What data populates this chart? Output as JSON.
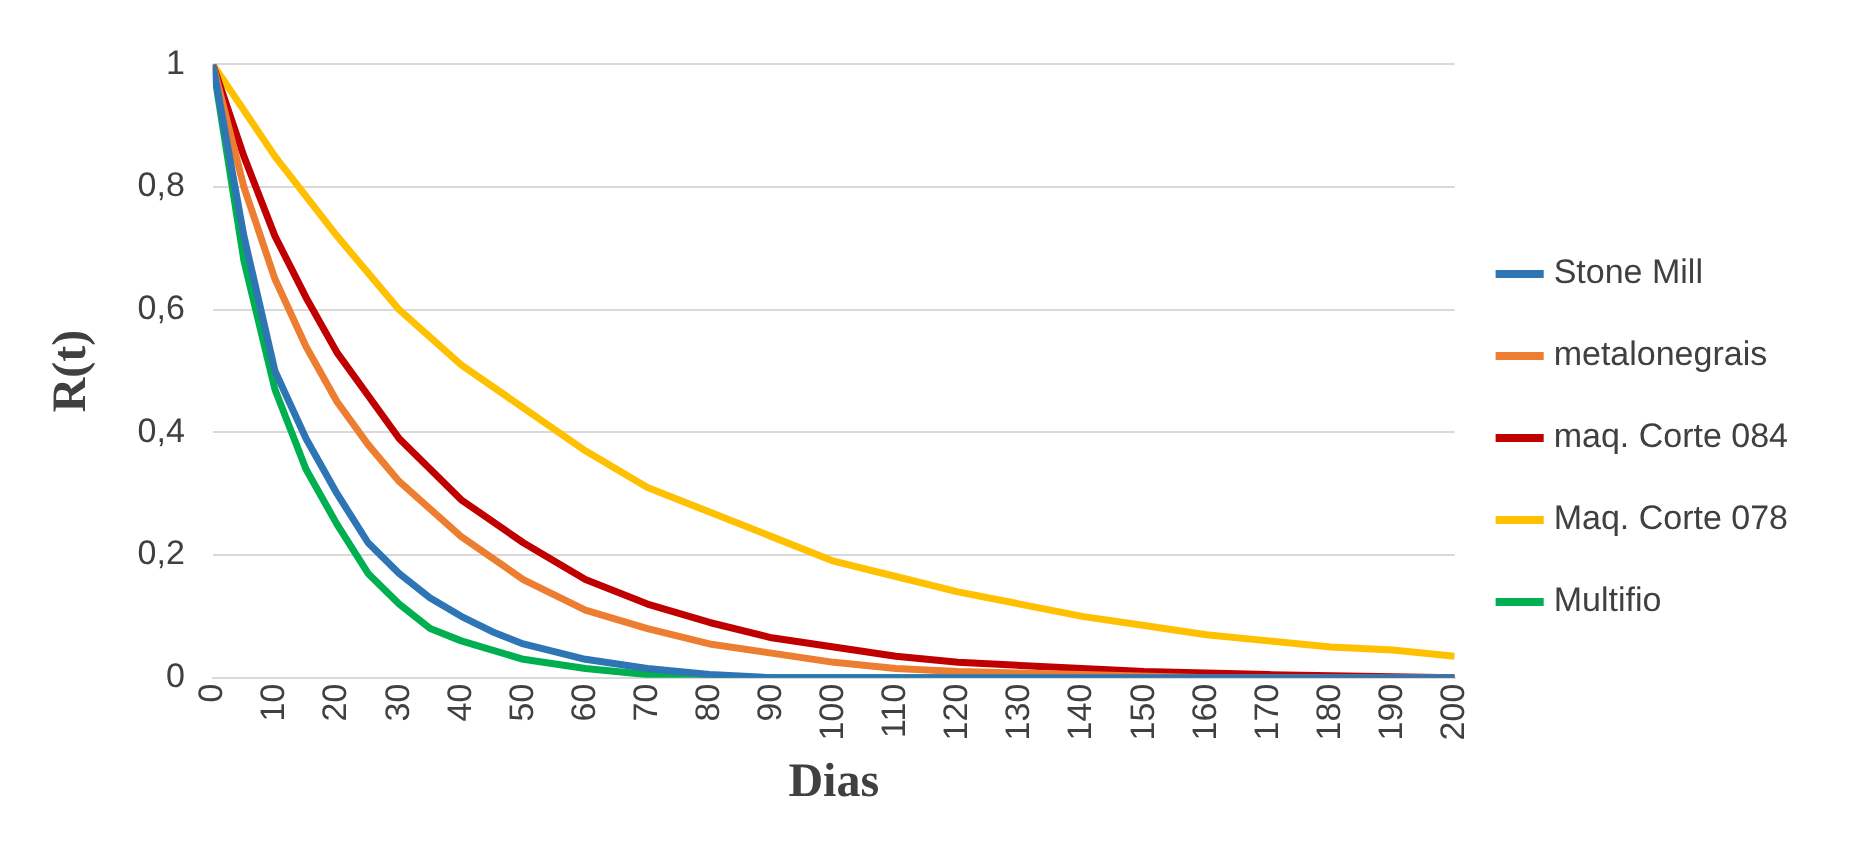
{
  "chart_data": {
    "type": "line",
    "xlabel": "Dias",
    "ylabel": "R(t)",
    "xlim": [
      0,
      200
    ],
    "xticks": [
      0,
      10,
      20,
      30,
      40,
      50,
      60,
      70,
      80,
      90,
      100,
      110,
      120,
      130,
      140,
      150,
      160,
      170,
      180,
      190,
      200
    ],
    "ylim": [
      0,
      1
    ],
    "yticks": [
      0,
      {
        "value": 0.2,
        "label": "0,2"
      },
      {
        "value": 0.4,
        "label": "0,4"
      },
      {
        "value": 0.6,
        "label": "0,6"
      },
      {
        "value": 0.8,
        "label": "0,8"
      },
      1
    ],
    "grid": "y",
    "legend": "right",
    "marker": "none",
    "line_style": "solid",
    "series": [
      {
        "name": "Stone Mill",
        "color": "#2e75b6",
        "x": [
          0,
          5,
          10,
          15,
          20,
          25,
          30,
          35,
          40,
          45,
          50,
          60,
          70,
          80,
          90,
          200
        ],
        "values": [
          1,
          0.72,
          0.5,
          0.39,
          0.3,
          0.22,
          0.17,
          0.13,
          0.1,
          0.075,
          0.055,
          0.03,
          0.015,
          0.005,
          0,
          0
        ]
      },
      {
        "name": "metalonegrais",
        "color": "#ed7d31",
        "x": [
          0,
          5,
          10,
          15,
          20,
          25,
          30,
          40,
          50,
          60,
          70,
          80,
          90,
          100,
          110,
          120,
          140,
          160,
          200
        ],
        "values": [
          1,
          0.8,
          0.65,
          0.54,
          0.45,
          0.38,
          0.32,
          0.23,
          0.16,
          0.11,
          0.08,
          0.055,
          0.04,
          0.025,
          0.015,
          0.01,
          0.005,
          0,
          0
        ]
      },
      {
        "name": "maq. Corte 084",
        "color": "#c00000",
        "x": [
          0,
          5,
          10,
          15,
          20,
          25,
          30,
          40,
          50,
          60,
          70,
          80,
          90,
          100,
          110,
          120,
          130,
          140,
          150,
          170,
          200
        ],
        "values": [
          1,
          0.85,
          0.72,
          0.62,
          0.53,
          0.46,
          0.39,
          0.29,
          0.22,
          0.16,
          0.12,
          0.09,
          0.065,
          0.05,
          0.035,
          0.025,
          0.02,
          0.015,
          0.01,
          0.005,
          0
        ]
      },
      {
        "name": "Maq. Corte 078",
        "color": "#ffc000",
        "x": [
          0,
          10,
          20,
          30,
          40,
          50,
          60,
          70,
          80,
          90,
          100,
          110,
          120,
          130,
          140,
          150,
          160,
          170,
          180,
          190,
          200
        ],
        "values": [
          1,
          0.85,
          0.72,
          0.6,
          0.51,
          0.44,
          0.37,
          0.31,
          0.27,
          0.23,
          0.19,
          0.165,
          0.14,
          0.12,
          0.1,
          0.085,
          0.07,
          0.06,
          0.05,
          0.045,
          0.035
        ]
      },
      {
        "name": "Multifio",
        "color": "#00b050",
        "x": [
          0,
          5,
          10,
          15,
          20,
          25,
          30,
          35,
          40,
          50,
          60,
          70,
          80,
          200
        ],
        "values": [
          1,
          0.68,
          0.47,
          0.34,
          0.25,
          0.17,
          0.12,
          0.08,
          0.06,
          0.03,
          0.015,
          0.005,
          0,
          0
        ]
      }
    ]
  }
}
